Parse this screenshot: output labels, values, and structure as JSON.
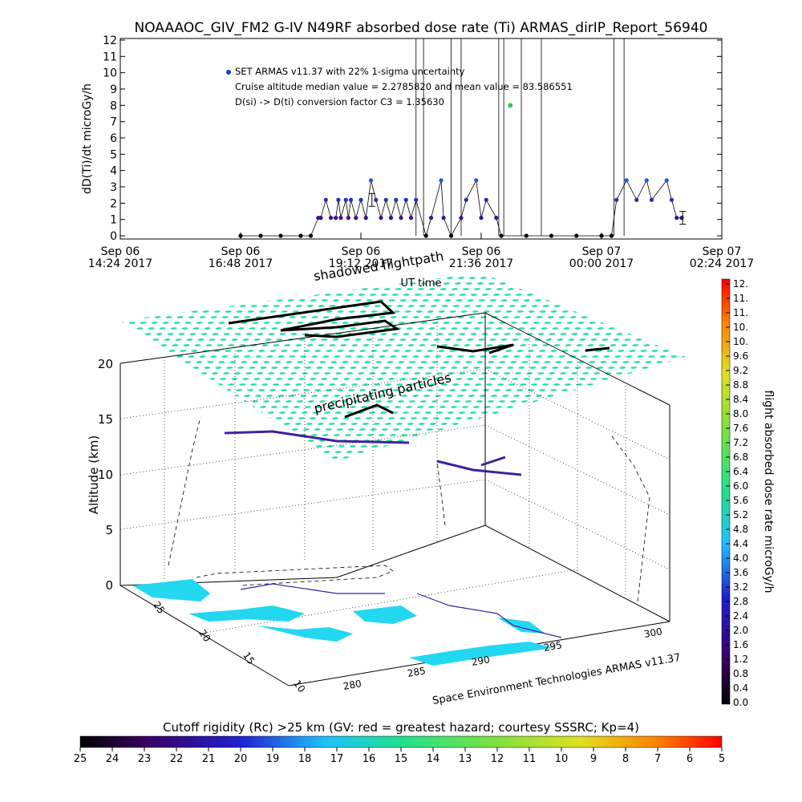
{
  "title": "NOAAAOC_GIV_FM2 G-IV    N49RF   absorbed dose rate (Ti) ARMAS_dirIP_Report_56940",
  "chart_data": [
    {
      "type": "scatter",
      "ylabel": "dD(Ti)/dt microGy/h",
      "xlabel": "UT time",
      "ylim": [
        0,
        12
      ],
      "yticks": [
        "0",
        "1",
        "2",
        "3",
        "4",
        "5",
        "6",
        "7",
        "8",
        "9",
        "10",
        "11",
        "12"
      ],
      "xticks": [
        {
          "line1": "Sep 06",
          "line2": "14:24 2017"
        },
        {
          "line1": "Sep 06",
          "line2": "16:48 2017"
        },
        {
          "line1": "Sep 06",
          "line2": "19:12 2017"
        },
        {
          "line1": "Sep 06",
          "line2": "21:36 2017"
        },
        {
          "line1": "Sep 07",
          "line2": "00:00 2017"
        },
        {
          "line1": "Sep 07",
          "line2": "02:24 2017"
        }
      ],
      "xlim_hours": [
        14.4,
        26.4
      ],
      "annotations": [
        "SET ARMAS v11.37 with 22% 1-sigma uncertainty",
        "Cruise altitude median value = 2.2785820 and mean value = 83.586551",
        "D(si) -> D(ti) conversion factor C3 = 1.35630"
      ],
      "series": [
        {
          "x": [
            16.8,
            17.2,
            17.6,
            18.0,
            18.2,
            18.35,
            18.4,
            18.5,
            18.6,
            18.7,
            18.75,
            18.8,
            18.9,
            18.95,
            19.0,
            19.1,
            19.2,
            19.3,
            19.4,
            19.5,
            19.6,
            19.7,
            19.8,
            19.9,
            20.0,
            20.1,
            20.2,
            20.3,
            20.5,
            20.6,
            20.8,
            20.85,
            21.0,
            21.2,
            21.3,
            21.5,
            21.6,
            21.7,
            21.9,
            22.0,
            22.5,
            23.0,
            23.5,
            24.0,
            24.2,
            24.3,
            24.5,
            24.7,
            24.9,
            25.0,
            25.3,
            25.4,
            25.5,
            25.6
          ],
          "y": [
            0,
            0,
            0,
            0,
            0,
            1.1,
            1.1,
            2.2,
            1.1,
            1.1,
            2.2,
            1.1,
            2.2,
            1.1,
            2.2,
            1.1,
            2.2,
            1.1,
            3.4,
            2.2,
            1.1,
            2.2,
            1.1,
            2.2,
            1.1,
            2.2,
            1.1,
            2.2,
            0,
            1.1,
            3.4,
            1.1,
            0,
            1.1,
            2.2,
            3.4,
            1.1,
            2.2,
            1.1,
            0,
            0,
            0,
            0,
            0,
            0,
            2.2,
            3.4,
            2.2,
            3.4,
            2.2,
            3.4,
            2.2,
            1.1,
            1.1
          ]
        }
      ],
      "highlight": {
        "x": 22.18,
        "y": 8.0,
        "color": "#3cc060"
      },
      "error_bars": [
        {
          "x": 19.42,
          "y": 2.2
        },
        {
          "x": 25.62,
          "y": 1.1
        }
      ]
    },
    {
      "type": "scatter3d",
      "zlabel": "Altitude (km)",
      "zticks": [
        "0",
        "5",
        "10",
        "15",
        "20"
      ],
      "lat_ticks": [
        "10",
        "15",
        "20",
        "25"
      ],
      "lon_ticks": [
        "280",
        "285",
        "290",
        "295",
        "300"
      ],
      "labels": {
        "shadow": "shadowed flightpath",
        "particles": "precipitating particles",
        "credit": "Space Environment Technologies ARMAS v11.37"
      },
      "colorbar": {
        "label": "flight absorbed dose rate microGy/h",
        "ticks": [
          "0.0",
          "0.4",
          "0.8",
          "1.2",
          "1.6",
          "2.0",
          "2.4",
          "2.8",
          "3.2",
          "3.6",
          "4.0",
          "4.4",
          "4.8",
          "5.2",
          "5.6",
          "6.0",
          "6.4",
          "6.8",
          "7.2",
          "7.6",
          "8.0",
          "8.4",
          "8.8",
          "9.2",
          "9.6",
          "10.",
          "10.",
          "11.",
          "11.",
          "12."
        ]
      },
      "rigidity_bar": {
        "label": "Cutoff rigidity (Rc) >25 km (GV: red = greatest hazard; courtesy SSSRC; Kp=4)",
        "ticks": [
          "25",
          "24",
          "23",
          "22",
          "21",
          "20",
          "19",
          "18",
          "17",
          "16",
          "15",
          "14",
          "13",
          "12",
          "11",
          "10",
          "9",
          "8",
          "7",
          "6",
          "5"
        ]
      }
    }
  ]
}
